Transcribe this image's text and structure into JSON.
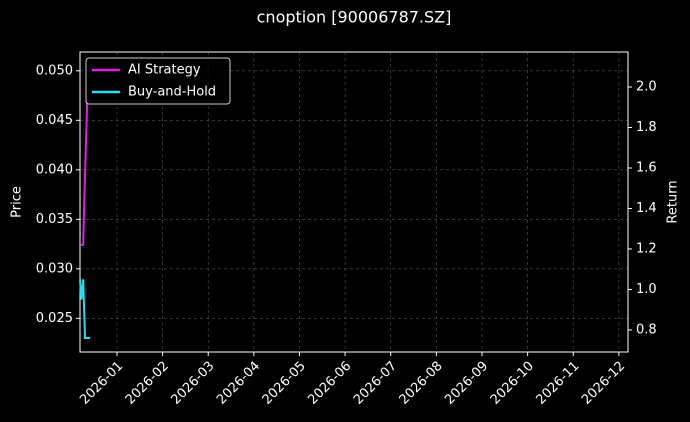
{
  "chart_data": {
    "type": "line",
    "title": "cnoption [90006787.SZ]",
    "ylabel": "Price",
    "y2label": "Return",
    "xlim": [
      0.19,
      12.2
    ],
    "xticks": [
      {
        "value": 1,
        "label": "2026-01"
      },
      {
        "value": 2,
        "label": "2026-02"
      },
      {
        "value": 3,
        "label": "2026-03"
      },
      {
        "value": 4,
        "label": "2026-04"
      },
      {
        "value": 5,
        "label": "2026-05"
      },
      {
        "value": 6,
        "label": "2026-06"
      },
      {
        "value": 7,
        "label": "2026-07"
      },
      {
        "value": 8,
        "label": "2026-08"
      },
      {
        "value": 9,
        "label": "2026-09"
      },
      {
        "value": 10,
        "label": "2026-10"
      },
      {
        "value": 11,
        "label": "2026-11"
      },
      {
        "value": 12,
        "label": "2026-12"
      }
    ],
    "ylim": [
      0.0216,
      0.0519
    ],
    "yticks": [
      0.025,
      {
        "value": 0.03,
        "label": "0.030"
      },
      0.035,
      {
        "value": 0.04,
        "label": "0.040"
      },
      0.045,
      {
        "value": 0.05,
        "label": "0.050"
      }
    ],
    "y2lim": [
      0.691,
      2.173
    ],
    "y2ticks": [
      0.8,
      {
        "value": 1,
        "label": "1.0"
      },
      1.2,
      1.4,
      1.6,
      1.8,
      {
        "value": 2,
        "label": "2.0"
      }
    ],
    "grid": true,
    "legend": "upper left",
    "series": [
      {
        "name": "AI Strategy",
        "color": "#e020e0",
        "axis": "y2",
        "x": [
          0.21,
          0.26,
          0.3,
          0.35
        ],
        "values": [
          1.22,
          1.22,
          1.57,
          1.94
        ]
      },
      {
        "name": "Buy-and-Hold",
        "color": "#20e0f0",
        "axis": "y2",
        "x": [
          0.19,
          0.22,
          0.26,
          0.3,
          0.41
        ],
        "values": [
          1.05,
          0.95,
          1.05,
          0.76,
          0.76
        ]
      }
    ]
  }
}
